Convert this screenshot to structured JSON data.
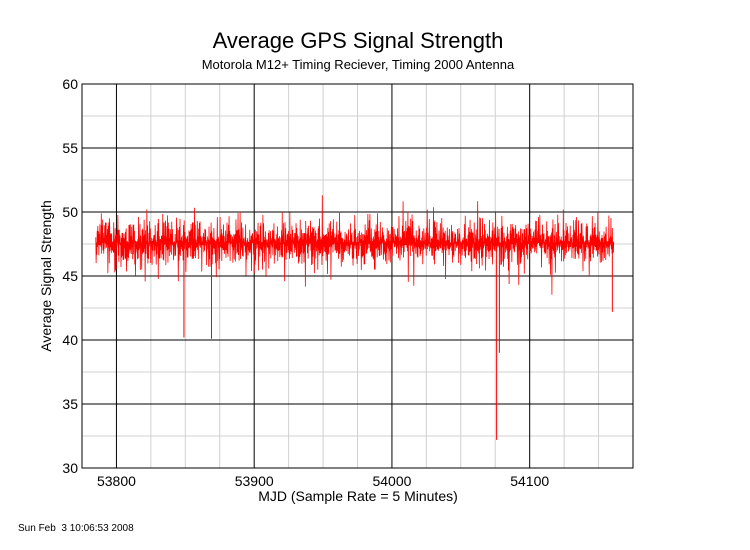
{
  "chart_data": {
    "type": "line",
    "title": "Average GPS Signal Strength",
    "subtitle": "Motorola M12+ Timing Reciever, Timing 2000 Antenna",
    "xlabel": "MJD (Sample Rate = 5 Minutes)",
    "ylabel": "Average Signal Strength",
    "xlim": [
      53775,
      54175
    ],
    "ylim": [
      30,
      60
    ],
    "x_ticks": [
      53800,
      53900,
      54000,
      54100
    ],
    "y_ticks": [
      30,
      35,
      40,
      45,
      50,
      55,
      60
    ],
    "grid": true,
    "series": [
      {
        "color": "#ff0000",
        "x_start": 53785,
        "x_end": 54161,
        "band_center": 47.6,
        "band_typical": [
          44.0,
          51.0
        ],
        "band_extremes": [
          41.0,
          53.0
        ],
        "outliers": [
          {
            "x": 53849,
            "y": 40.2
          },
          {
            "x": 53869,
            "y": 40.1
          },
          {
            "x": 54076,
            "y": 32.2
          },
          {
            "x": 54078,
            "y": 39.0
          },
          {
            "x": 54160,
            "y": 42.2
          }
        ]
      }
    ]
  },
  "footer": {
    "timestamp": "Sun Feb  3 10:06:53 2008"
  },
  "colors": {
    "series": "#ff0000",
    "major_grid": "#000000",
    "minor_grid": "#d0d0d0"
  }
}
